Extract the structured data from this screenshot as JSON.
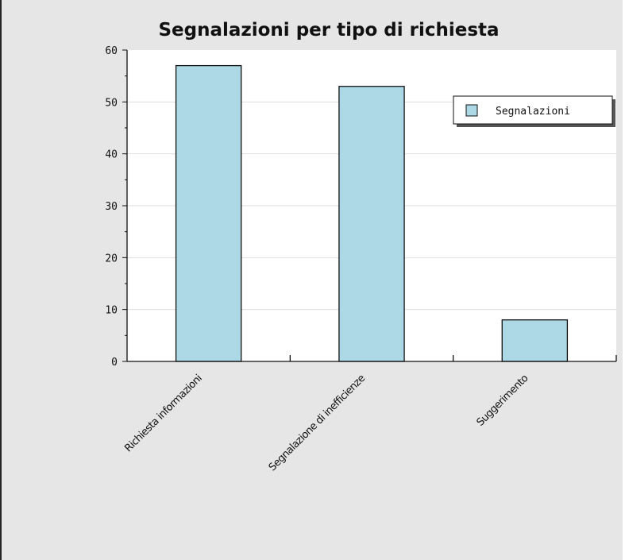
{
  "chart_data": {
    "type": "bar",
    "title": "Segnalazioni per tipo di richiesta",
    "categories": [
      "Richiesta informazioni",
      "Segnalazione di inefficienze",
      "Suggerimento"
    ],
    "series": [
      {
        "name": "Segnalazioni",
        "values": [
          57,
          53,
          8
        ]
      }
    ],
    "ylim": [
      0,
      60
    ],
    "yticks": [
      "0",
      "10",
      "20",
      "30",
      "40",
      "50",
      "60"
    ],
    "grid": true,
    "legend": "top-right",
    "colors": {
      "bar": "#add8e6",
      "plot_bg": "#ffffff",
      "page_bg": "#e6e6e6",
      "grid": "#dddddd"
    }
  }
}
